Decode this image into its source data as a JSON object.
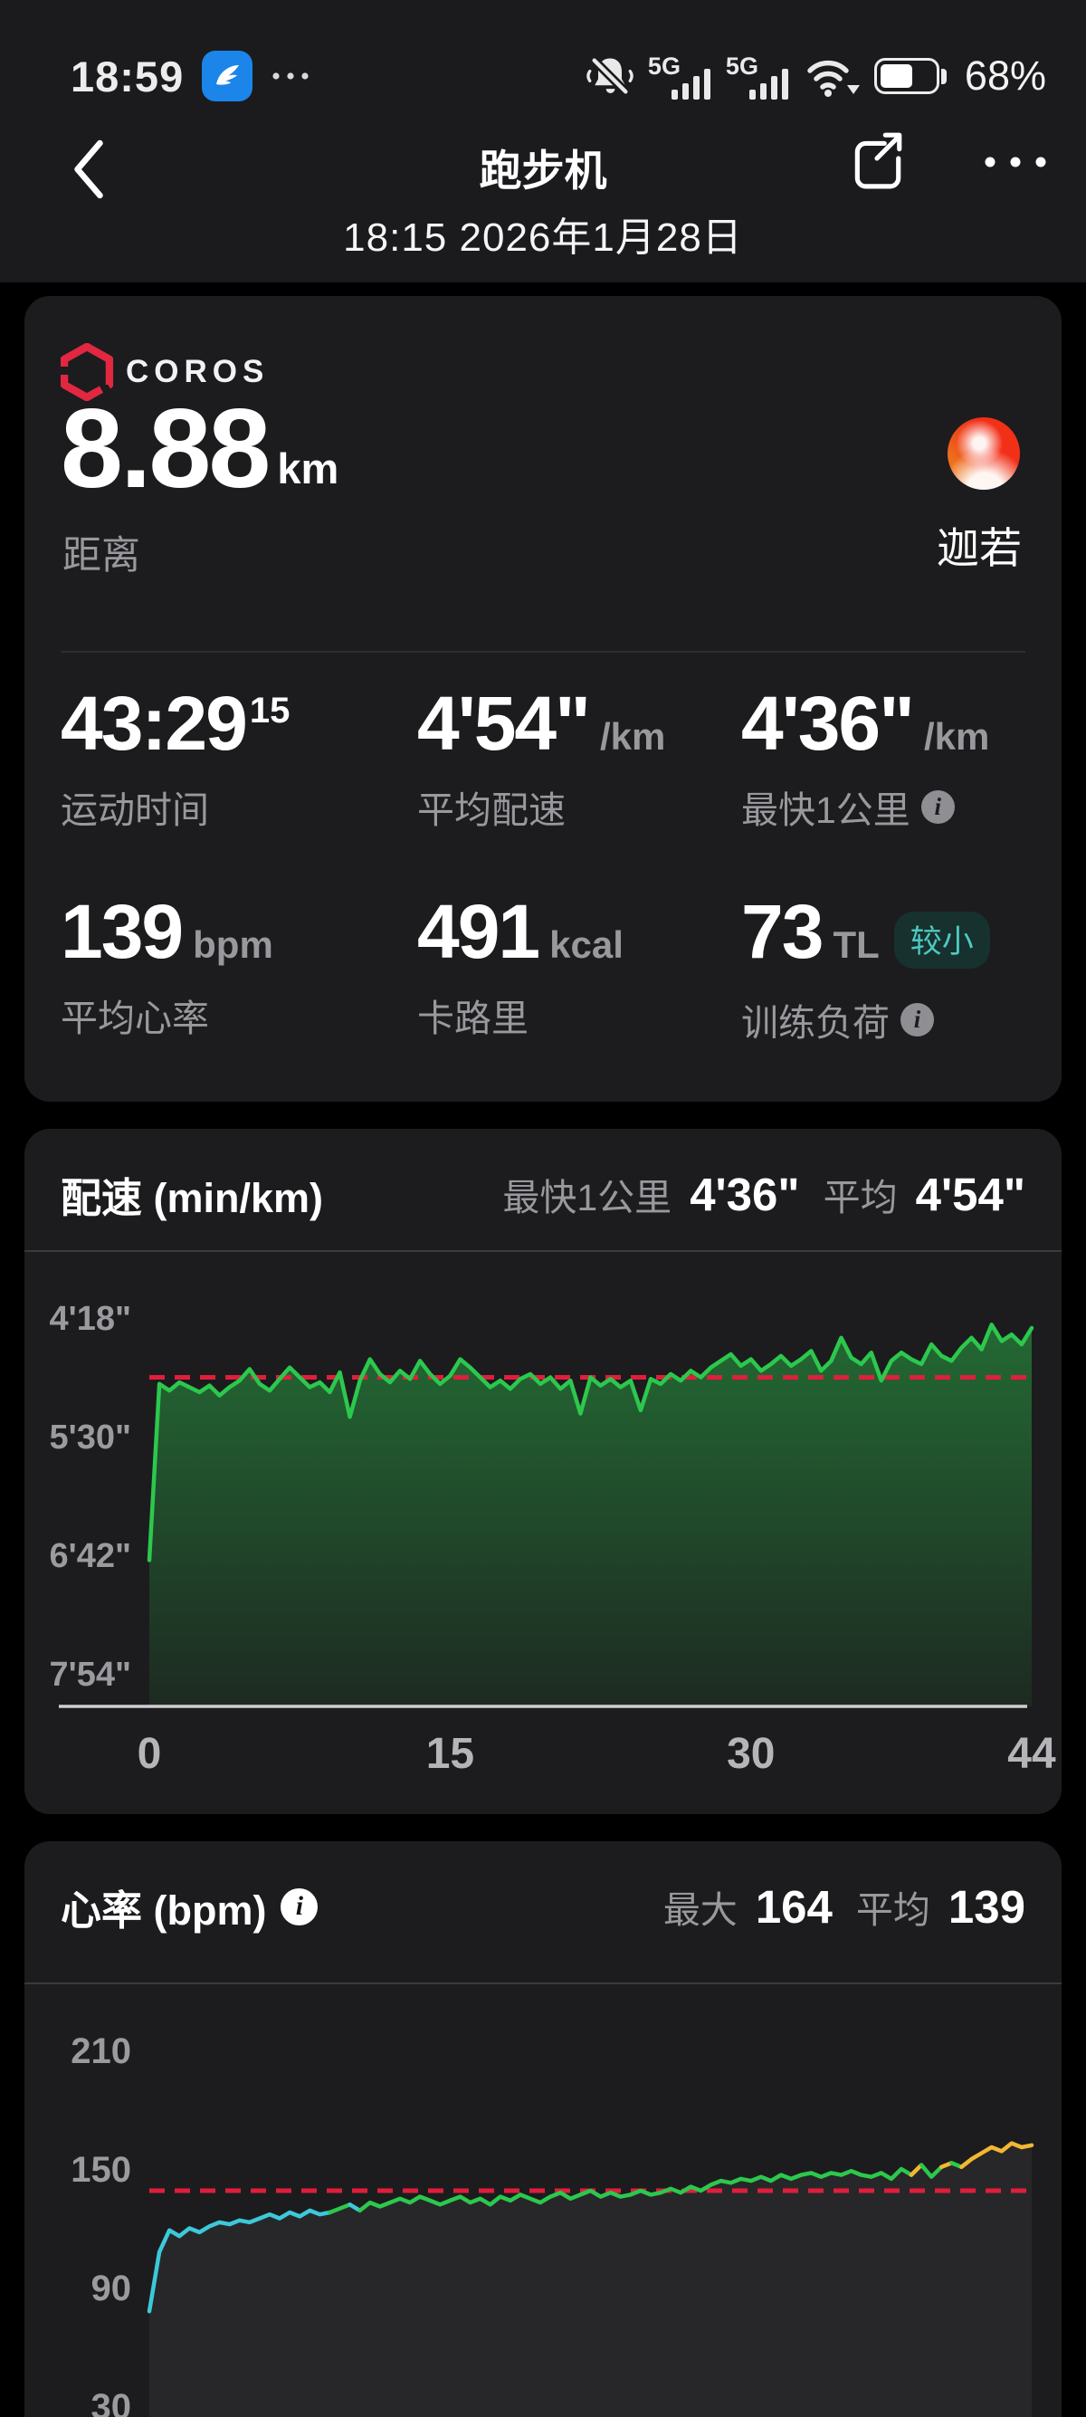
{
  "status_bar": {
    "time": "18:59",
    "network_type": "5G",
    "battery_percent": "68%"
  },
  "header": {
    "title": "跑步机",
    "subtitle": "18:15 2026年1月28日"
  },
  "icons": {
    "info": "i"
  },
  "summary": {
    "brand": "COROS",
    "distance_value": "8.88",
    "distance_unit": "km",
    "distance_label": "距离",
    "user_name": "迦若",
    "stats": [
      {
        "value": "43:29",
        "sup": "15",
        "unit": "",
        "label": "运动时间",
        "info": false
      },
      {
        "value": "4'54\"",
        "unit": "/km",
        "label": "平均配速",
        "info": false
      },
      {
        "value": "4'36\"",
        "unit": "/km",
        "label": "最快1公里",
        "info": true
      },
      {
        "value": "139",
        "unit": "bpm",
        "label": "平均心率",
        "info": false
      },
      {
        "value": "491",
        "unit": "kcal",
        "label": "卡路里",
        "info": false
      },
      {
        "value": "73",
        "unit": "TL",
        "badge": "较小",
        "label": "训练负荷",
        "info": true
      }
    ]
  },
  "chart_data": [
    {
      "type": "area",
      "title": "配速 (min/km)",
      "legend": [
        {
          "label": "最快1公里",
          "value": "4'36\""
        },
        {
          "label": "平均",
          "value": "4'54\""
        }
      ],
      "y_ticks": [
        {
          "label": "4'18\"",
          "seconds": 258
        },
        {
          "label": "5'30\"",
          "seconds": 330
        },
        {
          "label": "6'42\"",
          "seconds": 402
        },
        {
          "label": "7'54\"",
          "seconds": 474
        }
      ],
      "x_ticks": [
        0,
        15,
        30,
        44
      ],
      "x_max": 44,
      "x_start_min": 0,
      "x_step_min": 0.5,
      "avg_pace_seconds": 294,
      "line_color": "#2cc84d",
      "avg_line_color": "#e01e3c",
      "grid": false,
      "pace_seconds": [
        405,
        298,
        302,
        297,
        300,
        303,
        299,
        305,
        300,
        296,
        289,
        298,
        302,
        295,
        288,
        294,
        300,
        297,
        303,
        291,
        318,
        296,
        283,
        292,
        297,
        290,
        295,
        284,
        292,
        298,
        293,
        283,
        288,
        294,
        300,
        296,
        301,
        295,
        292,
        298,
        294,
        301,
        296,
        316,
        294,
        299,
        295,
        300,
        296,
        314,
        295,
        298,
        292,
        296,
        290,
        294,
        288,
        284,
        280,
        287,
        283,
        290,
        286,
        281,
        287,
        283,
        278,
        290,
        284,
        270,
        282,
        286,
        279,
        296,
        284,
        279,
        283,
        286,
        274,
        281,
        284,
        276,
        270,
        277,
        262,
        272,
        268,
        274,
        264
      ]
    },
    {
      "type": "area",
      "title": "心率 (bpm)",
      "legend": [
        {
          "label": "最大",
          "value": "164"
        },
        {
          "label": "平均",
          "value": "139"
        }
      ],
      "y_ticks": [
        210,
        150,
        90,
        30
      ],
      "x_max": 44,
      "x_start_min": 0,
      "x_step_min": 0.5,
      "avg_hr": 139,
      "zones": [
        {
          "upto": 129,
          "color": "#3cc9d9"
        },
        {
          "upto": 151,
          "color": "#2cc84d"
        },
        {
          "upto": 250,
          "color": "#f2b833"
        }
      ],
      "avg_line_color": "#e01e3c",
      "grid": false,
      "hr_bpm": [
        78,
        108,
        119,
        116,
        120,
        118,
        121,
        123,
        122,
        124,
        123,
        125,
        127,
        125,
        128,
        126,
        129,
        127,
        128,
        130,
        132,
        129,
        133,
        131,
        133,
        135,
        133,
        136,
        134,
        132,
        134,
        136,
        133,
        135,
        132,
        136,
        134,
        137,
        135,
        133,
        136,
        138,
        135,
        137,
        139,
        136,
        138,
        136,
        137,
        139,
        137,
        138,
        140,
        138,
        141,
        139,
        142,
        144,
        143,
        145,
        144,
        146,
        144,
        147,
        145,
        147,
        148,
        146,
        148,
        147,
        149,
        147,
        146,
        148,
        145,
        150,
        147,
        152,
        146,
        151,
        153,
        151,
        155,
        158,
        161,
        159,
        163,
        161,
        162
      ]
    }
  ]
}
